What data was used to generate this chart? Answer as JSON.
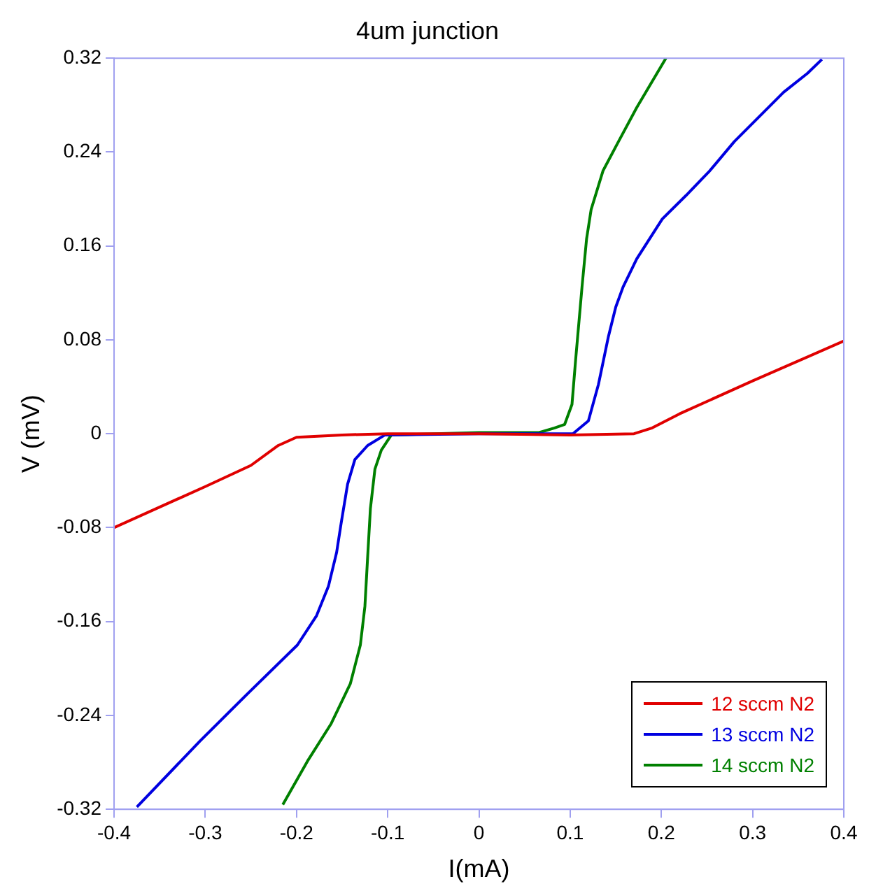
{
  "chart_data": {
    "type": "line",
    "title": "4um junction",
    "xlabel": "I(mA)",
    "ylabel": "V (mV)",
    "xlim": [
      -0.4,
      0.4
    ],
    "ylim": [
      -0.32,
      0.32
    ],
    "xticks": [
      -0.4,
      -0.3,
      -0.2,
      -0.1,
      0,
      0.1,
      0.2,
      0.3,
      0.4
    ],
    "yticks": [
      -0.32,
      -0.24,
      -0.16,
      -0.08,
      0,
      0.08,
      0.16,
      0.24,
      0.32
    ],
    "grid": false,
    "legend": "bottom right",
    "marker": "none",
    "line_style": "solid",
    "series": [
      {
        "name": "12 sccm N2",
        "color": "#e00000",
        "x": [
          -0.4,
          -0.3,
          -0.25,
          -0.22,
          -0.2,
          -0.15,
          -0.1,
          0,
          0.1,
          0.17,
          0.19,
          0.22,
          0.3,
          0.4
        ],
        "values": [
          -0.08,
          -0.045,
          -0.027,
          -0.01,
          -0.003,
          -0.001,
          0,
          0,
          -0.001,
          0,
          0.005,
          0.017,
          0.045,
          0.079
        ]
      },
      {
        "name": "13 sccm N2",
        "color": "#0000e0",
        "x": [
          -0.375,
          -0.306,
          -0.253,
          -0.199,
          -0.178,
          -0.165,
          -0.156,
          -0.151,
          -0.144,
          -0.136,
          -0.122,
          -0.103,
          0,
          0.088,
          0.103,
          0.12,
          0.131,
          0.142,
          0.15,
          0.158,
          0.173,
          0.201,
          0.227,
          0.253,
          0.28,
          0.307,
          0.334,
          0.36,
          0.376
        ],
        "values": [
          -0.318,
          -0.262,
          -0.221,
          -0.18,
          -0.155,
          -0.13,
          -0.101,
          -0.076,
          -0.043,
          -0.022,
          -0.01,
          -0.001,
          0,
          0,
          0,
          0.011,
          0.042,
          0.083,
          0.108,
          0.125,
          0.149,
          0.183,
          0.203,
          0.224,
          0.249,
          0.27,
          0.291,
          0.307,
          0.319
        ]
      },
      {
        "name": "14 sccm N2",
        "color": "#008000",
        "x": [
          -0.215,
          -0.188,
          -0.162,
          -0.141,
          -0.13,
          -0.125,
          -0.122,
          -0.119,
          -0.114,
          -0.107,
          -0.096,
          0,
          0.066,
          0.083,
          0.094,
          0.102,
          0.106,
          0.113,
          0.118,
          0.123,
          0.136,
          0.153,
          0.173,
          0.205
        ],
        "values": [
          -0.316,
          -0.279,
          -0.247,
          -0.213,
          -0.18,
          -0.147,
          -0.105,
          -0.064,
          -0.03,
          -0.014,
          -0.001,
          0.001,
          0.001,
          0.005,
          0.008,
          0.025,
          0.063,
          0.125,
          0.166,
          0.191,
          0.224,
          0.249,
          0.278,
          0.32
        ]
      }
    ]
  }
}
